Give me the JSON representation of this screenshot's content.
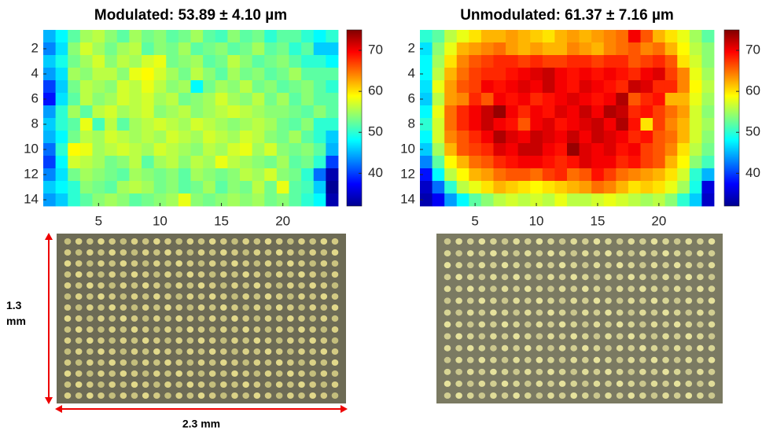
{
  "chart_data": [
    {
      "type": "heatmap",
      "title": "Modulated: 53.89 ± 4.10 µm",
      "colormap": "jet",
      "xlim": [
        0.5,
        24.5
      ],
      "ylim": [
        0.5,
        14.5
      ],
      "xticks": [
        5,
        10,
        15,
        20
      ],
      "yticks": [
        2,
        4,
        6,
        8,
        10,
        12,
        14
      ],
      "clim": [
        32,
        75
      ],
      "cticks": [
        40,
        50,
        60,
        70
      ],
      "annotations": {
        "height": "1.3 mm",
        "width": "2.3 mm"
      },
      "z": [
        [
          45,
          48,
          52,
          55,
          56,
          54,
          52,
          55,
          53,
          54,
          52,
          53,
          55,
          52,
          51,
          54,
          52,
          53,
          50,
          52,
          52,
          50,
          48,
          50
        ],
        [
          43,
          47,
          54,
          57,
          55,
          53,
          55,
          56,
          52,
          54,
          53,
          55,
          52,
          53,
          54,
          52,
          53,
          55,
          52,
          53,
          50,
          52,
          46,
          46
        ],
        [
          46,
          49,
          53,
          55,
          57,
          54,
          56,
          55,
          57,
          58,
          53,
          54,
          55,
          52,
          53,
          56,
          54,
          52,
          53,
          54,
          52,
          50,
          50,
          48
        ],
        [
          44,
          47,
          55,
          54,
          56,
          56,
          54,
          58,
          59,
          57,
          55,
          53,
          56,
          54,
          52,
          55,
          53,
          54,
          52,
          53,
          55,
          52,
          52,
          52
        ],
        [
          40,
          46,
          53,
          56,
          55,
          54,
          57,
          56,
          58,
          56,
          54,
          55,
          48,
          53,
          55,
          54,
          56,
          53,
          54,
          52,
          53,
          54,
          52,
          50
        ],
        [
          38,
          47,
          52,
          56,
          54,
          55,
          57,
          56,
          57,
          55,
          56,
          53,
          54,
          55,
          57,
          55,
          54,
          56,
          53,
          55,
          52,
          54,
          52,
          52
        ],
        [
          44,
          50,
          55,
          52,
          56,
          57,
          55,
          56,
          57,
          54,
          55,
          56,
          54,
          55,
          56,
          57,
          56,
          55,
          54,
          54,
          53,
          52,
          54,
          52
        ],
        [
          46,
          50,
          52,
          58,
          51,
          56,
          52,
          55,
          56,
          57,
          56,
          55,
          57,
          56,
          55,
          54,
          55,
          56,
          55,
          53,
          52,
          54,
          50,
          50
        ],
        [
          45,
          48,
          53,
          56,
          55,
          57,
          56,
          55,
          56,
          55,
          57,
          56,
          55,
          57,
          56,
          55,
          57,
          56,
          54,
          53,
          55,
          52,
          50,
          46
        ],
        [
          42,
          50,
          59,
          58,
          55,
          56,
          57,
          56,
          55,
          57,
          56,
          55,
          54,
          56,
          55,
          57,
          58,
          55,
          57,
          54,
          53,
          54,
          52,
          45
        ],
        [
          40,
          48,
          57,
          56,
          55,
          53,
          54,
          56,
          52,
          55,
          56,
          54,
          56,
          55,
          58,
          56,
          55,
          54,
          53,
          55,
          52,
          53,
          50,
          40
        ],
        [
          43,
          47,
          53,
          55,
          54,
          53,
          52,
          55,
          54,
          53,
          54,
          52,
          55,
          54,
          53,
          54,
          56,
          55,
          57,
          54,
          53,
          50,
          42,
          34
        ],
        [
          46,
          48,
          50,
          54,
          53,
          52,
          55,
          56,
          55,
          53,
          54,
          52,
          53,
          55,
          52,
          54,
          53,
          56,
          53,
          58,
          52,
          51,
          46,
          33
        ],
        [
          44,
          46,
          50,
          52,
          54,
          55,
          54,
          52,
          53,
          54,
          55,
          58,
          54,
          53,
          54,
          55,
          54,
          55,
          53,
          54,
          52,
          50,
          48,
          34
        ]
      ]
    },
    {
      "type": "heatmap",
      "title": "Unmodulated: 61.37 ± 7.16 µm",
      "colormap": "jet",
      "xlim": [
        0.5,
        24.5
      ],
      "ylim": [
        0.5,
        14.5
      ],
      "xticks": [
        5,
        10,
        15,
        20
      ],
      "yticks": [
        2,
        4,
        6,
        8,
        10,
        12,
        14
      ],
      "clim": [
        32,
        75
      ],
      "cticks": [
        40,
        50,
        60,
        70
      ],
      "z": [
        [
          50,
          52,
          56,
          58,
          60,
          62,
          62,
          63,
          62,
          61,
          60,
          62,
          63,
          62,
          63,
          64,
          65,
          70,
          66,
          62,
          60,
          58,
          55,
          52
        ],
        [
          47,
          54,
          58,
          62,
          63,
          64,
          65,
          63,
          62,
          63,
          62,
          62,
          64,
          63,
          62,
          64,
          65,
          66,
          64,
          65,
          62,
          59,
          56,
          54
        ],
        [
          48,
          55,
          60,
          64,
          66,
          67,
          68,
          68,
          67,
          68,
          67,
          67,
          68,
          68,
          67,
          68,
          68,
          66,
          67,
          68,
          66,
          60,
          57,
          54
        ],
        [
          48,
          56,
          62,
          65,
          67,
          68,
          68,
          69,
          70,
          71,
          72,
          70,
          69,
          70,
          69,
          70,
          69,
          68,
          70,
          71,
          67,
          64,
          58,
          55
        ],
        [
          47,
          58,
          63,
          66,
          67,
          70,
          69,
          70,
          71,
          70,
          72,
          70,
          69,
          71,
          70,
          69,
          68,
          72,
          71,
          68,
          68,
          64,
          59,
          56
        ],
        [
          46,
          56,
          63,
          64,
          68,
          66,
          70,
          69,
          70,
          68,
          69,
          70,
          71,
          70,
          69,
          70,
          73,
          66,
          68,
          69,
          62,
          62,
          58,
          55
        ],
        [
          48,
          58,
          65,
          68,
          70,
          72,
          74,
          70,
          68,
          70,
          69,
          71,
          70,
          72,
          70,
          73,
          72,
          68,
          69,
          67,
          65,
          63,
          57,
          54
        ],
        [
          50,
          57,
          65,
          68,
          70,
          72,
          70,
          69,
          66,
          70,
          71,
          69,
          70,
          71,
          72,
          70,
          73,
          69,
          60,
          67,
          64,
          62,
          57,
          55
        ],
        [
          48,
          57,
          64,
          66,
          68,
          70,
          73,
          71,
          70,
          72,
          71,
          70,
          72,
          70,
          72,
          71,
          70,
          68,
          69,
          66,
          65,
          62,
          57,
          54
        ],
        [
          46,
          55,
          62,
          66,
          67,
          68,
          71,
          70,
          72,
          72,
          70,
          69,
          74,
          71,
          70,
          71,
          69,
          70,
          67,
          66,
          64,
          60,
          56,
          53
        ],
        [
          43,
          52,
          59,
          62,
          65,
          66,
          68,
          69,
          70,
          70,
          69,
          68,
          69,
          71,
          70,
          70,
          68,
          69,
          67,
          66,
          62,
          59,
          54,
          51
        ],
        [
          38,
          48,
          56,
          59,
          62,
          63,
          65,
          66,
          66,
          65,
          67,
          68,
          65,
          66,
          69,
          67,
          65,
          64,
          63,
          62,
          60,
          57,
          50,
          45
        ],
        [
          35,
          42,
          50,
          56,
          58,
          60,
          62,
          61,
          60,
          59,
          60,
          61,
          62,
          63,
          65,
          64,
          62,
          60,
          61,
          60,
          58,
          55,
          49,
          36
        ],
        [
          34,
          37,
          44,
          48,
          52,
          54,
          56,
          57,
          56,
          57,
          56,
          58,
          56,
          56,
          57,
          58,
          57,
          56,
          55,
          56,
          54,
          50,
          46,
          35
        ]
      ]
    }
  ]
}
